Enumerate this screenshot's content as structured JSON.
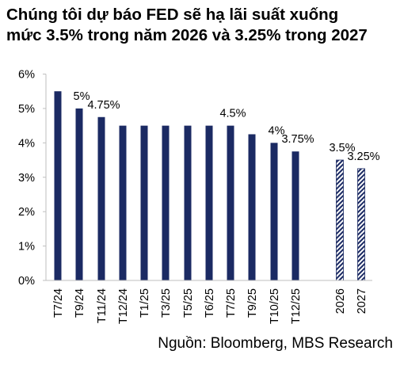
{
  "title_lines": [
    "Chúng tôi dự báo FED sẽ hạ lãi suất xuống",
    "mức 3.5% trong năm 2026 và 3.25% trong 2027"
  ],
  "source": "Nguồn: Bloomberg, MBS Research",
  "colors": {
    "bar": "#1b2a63",
    "hatch": "#1b2a63",
    "axis": "#bfbfbf",
    "text": "#000000"
  },
  "chart_data": {
    "type": "bar",
    "categories": [
      "T7/24",
      "T9/24",
      "T11/24",
      "T12/24",
      "T1/25",
      "T3/25",
      "T5/25",
      "T6/25",
      "T7/25",
      "T9/25",
      "T10/25",
      "T12/25",
      "2026",
      "2027"
    ],
    "values": [
      5.5,
      5.0,
      4.75,
      4.5,
      4.5,
      4.5,
      4.5,
      4.5,
      4.5,
      4.25,
      4.0,
      3.75,
      3.5,
      3.25
    ],
    "data_labels": [
      "",
      "5%",
      "4.75%",
      "",
      "",
      "",
      "",
      "",
      "4.5%",
      "",
      "4%",
      "3.75%",
      "3.5%",
      "3.25%"
    ],
    "forecast": [
      false,
      false,
      false,
      false,
      false,
      false,
      false,
      false,
      false,
      false,
      false,
      false,
      true,
      true
    ],
    "yticks": [
      "0%",
      "1%",
      "2%",
      "3%",
      "4%",
      "5%",
      "6%"
    ],
    "ylim": [
      0,
      6
    ],
    "grid": false,
    "legend": "none",
    "title": "Chúng tôi dự báo FED sẽ hạ lãi suất xuống mức 3.5% trong năm 2026 và 3.25% trong 2027",
    "xlabel": "",
    "ylabel": ""
  }
}
